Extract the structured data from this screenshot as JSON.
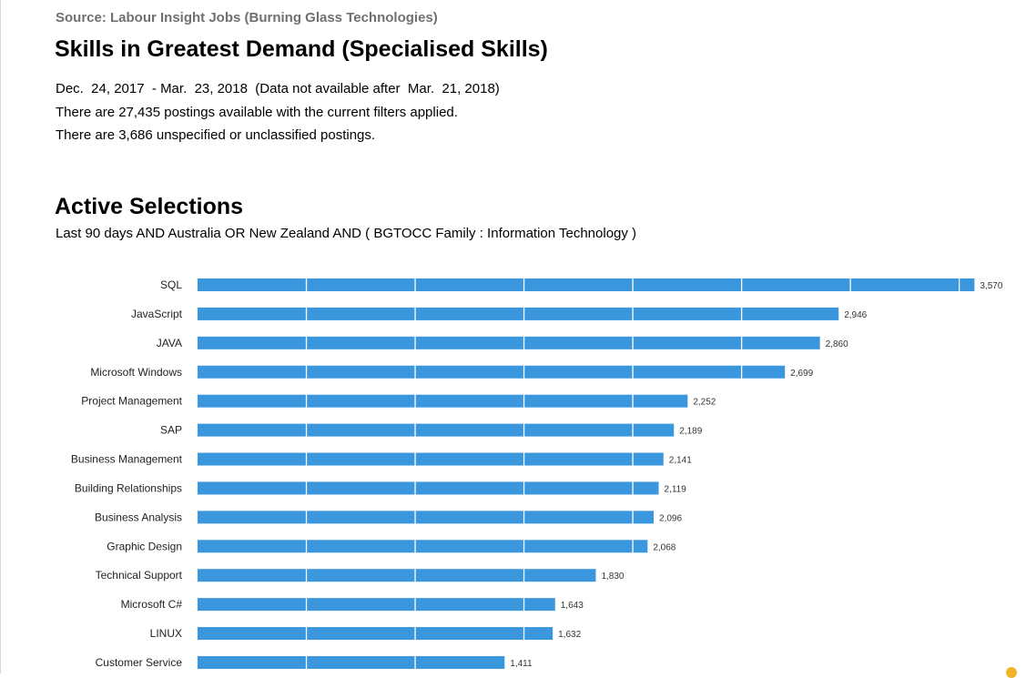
{
  "header": {
    "source": "Source: Labour Insight Jobs (Burning Glass Technologies)",
    "title": "Skills in Greatest Demand (Specialised Skills)",
    "date_range": "Dec.  24, 2017  - Mar.  23, 2018  (Data not available after  Mar.  21, 2018)",
    "postings": "There are 27,435 postings available with the current filters applied.",
    "unspecified": "There are 3,686 unspecified or unclassified postings."
  },
  "selections": {
    "heading": "Active Selections",
    "text": "Last 90 days AND Australia OR New Zealand AND ( BGTOCC Family : Information Technology )"
  },
  "colors": {
    "bar": "#3a97dd",
    "divider": "#ffffff"
  },
  "chart_data": {
    "type": "bar",
    "orientation": "horizontal",
    "title": "",
    "xlabel": "",
    "ylabel": "",
    "grid": true,
    "xlim": [
      0,
      3500
    ],
    "categories": [
      "SQL",
      "JavaScript",
      "JAVA",
      "Microsoft Windows",
      "Project Management",
      "SAP",
      "Business Management",
      "Building Relationships",
      "Business Analysis",
      "Graphic Design",
      "Technical Support",
      "Microsoft C#",
      "LINUX",
      "Customer Service"
    ],
    "values": [
      3570,
      2946,
      2860,
      2699,
      2252,
      2189,
      2141,
      2119,
      2096,
      2068,
      1830,
      1643,
      1632,
      1411
    ],
    "value_labels": [
      "3,570",
      "2,946",
      "2,860",
      "2,699",
      "2,252",
      "2,189",
      "2,141",
      "2,119",
      "2,096",
      "2,068",
      "1,830",
      "1,643",
      "1,632",
      "1,411"
    ]
  }
}
